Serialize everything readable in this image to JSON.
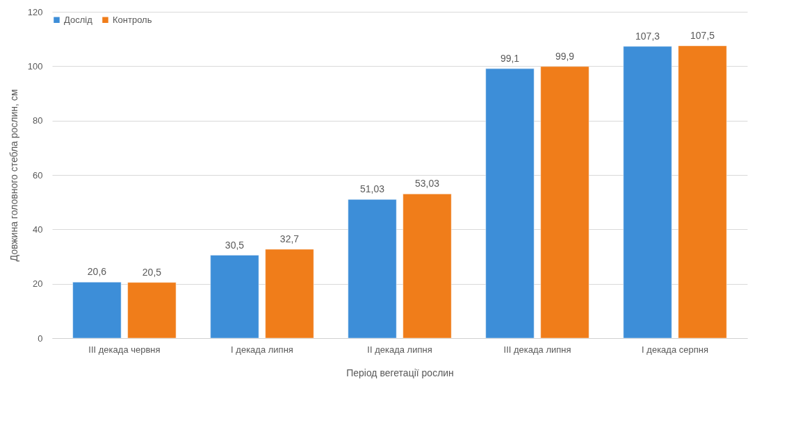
{
  "chart_data": {
    "type": "bar",
    "xlabel": "Період вегетації рослин",
    "ylabel": "Довжина головного стебла рослин, см",
    "categories": [
      "III декада червня",
      "I декада липня",
      "II декада липня",
      "III декада липня",
      "I декада серпня"
    ],
    "series": [
      {
        "name": "Дослід",
        "color": "#3d8ed8",
        "values": [
          20.6,
          30.5,
          51.03,
          99.1,
          107.3
        ],
        "value_labels": [
          "20,6",
          "30,5",
          "51,03",
          "99,1",
          "107,3"
        ]
      },
      {
        "name": "Контроль",
        "color": "#f07d1a",
        "values": [
          20.5,
          32.7,
          53.03,
          99.9,
          107.5
        ],
        "value_labels": [
          "20,5",
          "32,7",
          "53,03",
          "99,9",
          "107,5"
        ]
      }
    ],
    "ylim": [
      0,
      120
    ],
    "yticks": [
      0,
      20,
      40,
      60,
      80,
      100,
      120
    ],
    "grid": "y",
    "legend": "top"
  }
}
